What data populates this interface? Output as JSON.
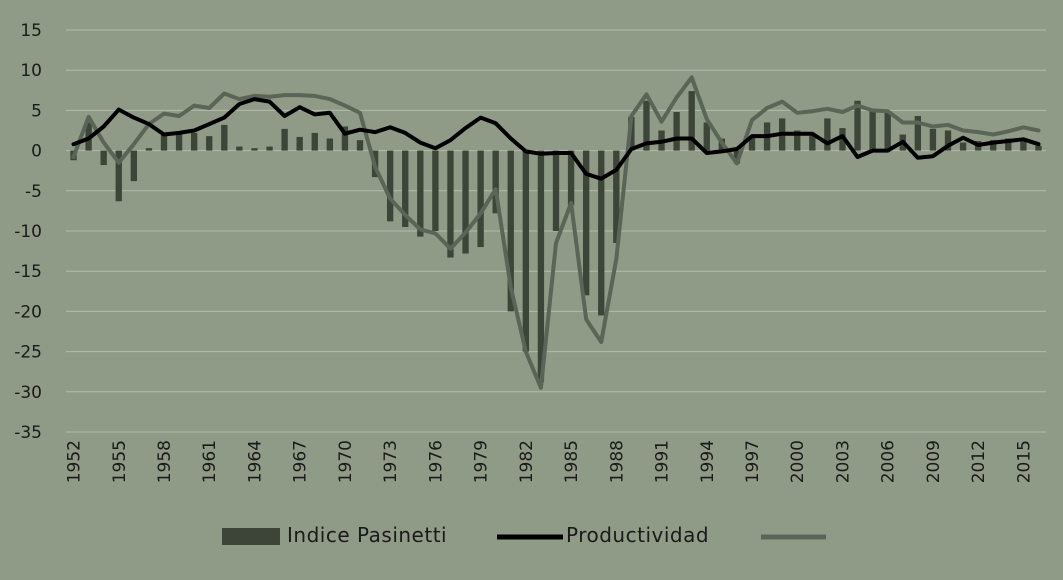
{
  "colors": {
    "background": "#8f9a87",
    "grid": "#b3bcab",
    "bars": "#3d4538",
    "productividad": "#000000",
    "third_series": "#5b6557"
  },
  "chart_data": {
    "type": "bar+line",
    "title": "",
    "xlabel": "",
    "ylabel": "",
    "ylim": [
      -35,
      15
    ],
    "y_ticks": [
      "15",
      "10",
      "5",
      "0",
      "-5",
      "-10",
      "-15",
      "-20",
      "-25",
      "-30",
      "-35"
    ],
    "grid": "horizontal",
    "legend_position": "bottom",
    "x": [
      1952,
      1953,
      1954,
      1955,
      1956,
      1957,
      1958,
      1959,
      1960,
      1961,
      1962,
      1963,
      1964,
      1965,
      1966,
      1967,
      1968,
      1969,
      1970,
      1971,
      1972,
      1973,
      1974,
      1975,
      1976,
      1977,
      1978,
      1979,
      1980,
      1981,
      1982,
      1983,
      1984,
      1985,
      1986,
      1987,
      1988,
      1989,
      1990,
      1991,
      1992,
      1993,
      1994,
      1995,
      1996,
      1997,
      1998,
      1999,
      2000,
      2001,
      2002,
      2003,
      2004,
      2005,
      2006,
      2007,
      2008,
      2009,
      2010,
      2011,
      2012,
      2013,
      2014,
      2015,
      2016
    ],
    "x_tick_labels": [
      "1952",
      "1955",
      "1958",
      "1961",
      "1964",
      "1967",
      "1970",
      "1973",
      "1976",
      "1979",
      "1982",
      "1985",
      "1988",
      "1991",
      "1994",
      "1997",
      "2000",
      "2003",
      "2006",
      "2009",
      "2012",
      "2015"
    ],
    "series": [
      {
        "name": "Indice Pasinetti",
        "type": "bar",
        "values": [
          -1.2,
          3.5,
          -1.8,
          -6.3,
          -3.8,
          0.3,
          2.0,
          2.2,
          2.2,
          1.8,
          3.2,
          0.5,
          0.3,
          0.5,
          2.7,
          1.7,
          2.2,
          1.5,
          3.0,
          1.3,
          -3.3,
          -8.8,
          -9.5,
          -10.7,
          -10.0,
          -13.3,
          -12.8,
          -12.0,
          -7.8,
          -20.0,
          -25.0,
          -28.8,
          -10.0,
          -6.8,
          -18.0,
          -20.5,
          -11.5,
          4.2,
          6.2,
          2.5,
          4.8,
          7.4,
          3.5,
          1.5,
          -1.6,
          1.6,
          3.5,
          4.0,
          2.5,
          2.0,
          4.0,
          2.8,
          6.2,
          5.0,
          4.8,
          2.0,
          4.3,
          2.7,
          2.5,
          1.0,
          1.2,
          1.3,
          1.5,
          1.4,
          0.6
        ]
      },
      {
        "name": "Productividad",
        "type": "line",
        "values": [
          0.8,
          1.5,
          3.0,
          5.1,
          4.1,
          3.3,
          2.0,
          2.2,
          2.5,
          3.3,
          4.1,
          5.8,
          6.4,
          6.1,
          4.3,
          5.4,
          4.5,
          4.7,
          2.1,
          2.6,
          2.3,
          2.9,
          2.2,
          1.0,
          0.3,
          1.3,
          2.8,
          4.1,
          3.4,
          1.5,
          -0.1,
          -0.4,
          -0.3,
          -0.3,
          -2.9,
          -3.5,
          -2.4,
          0.2,
          0.9,
          1.1,
          1.5,
          1.5,
          -0.3,
          -0.1,
          0.2,
          1.8,
          1.8,
          2.1,
          2.1,
          2.1,
          0.9,
          1.8,
          -0.8,
          0.0,
          0.0,
          1.1,
          -0.9,
          -0.7,
          0.6,
          1.6,
          0.7,
          1.0,
          1.2,
          1.4,
          0.8
        ]
      },
      {
        "type": "line",
        "values": [
          -0.8,
          4.2,
          1.0,
          -1.5,
          0.8,
          3.3,
          4.6,
          4.3,
          5.6,
          5.3,
          7.1,
          6.4,
          6.8,
          6.7,
          6.9,
          6.9,
          6.8,
          6.4,
          5.6,
          4.7,
          -2.0,
          -6.0,
          -8.0,
          -9.8,
          -10.3,
          -12.2,
          -10.2,
          -7.8,
          -4.8,
          -17.0,
          -25.0,
          -29.5,
          -11.5,
          -6.5,
          -21.0,
          -23.8,
          -13.5,
          4.3,
          7.0,
          3.6,
          6.6,
          9.1,
          3.9,
          1.0,
          -1.6,
          3.8,
          5.3,
          6.1,
          4.7,
          4.9,
          5.2,
          4.8,
          5.6,
          5.0,
          4.9,
          3.5,
          3.5,
          3.0,
          3.2,
          2.5,
          2.3,
          2.0,
          2.4,
          2.9,
          2.5
        ]
      }
    ]
  }
}
